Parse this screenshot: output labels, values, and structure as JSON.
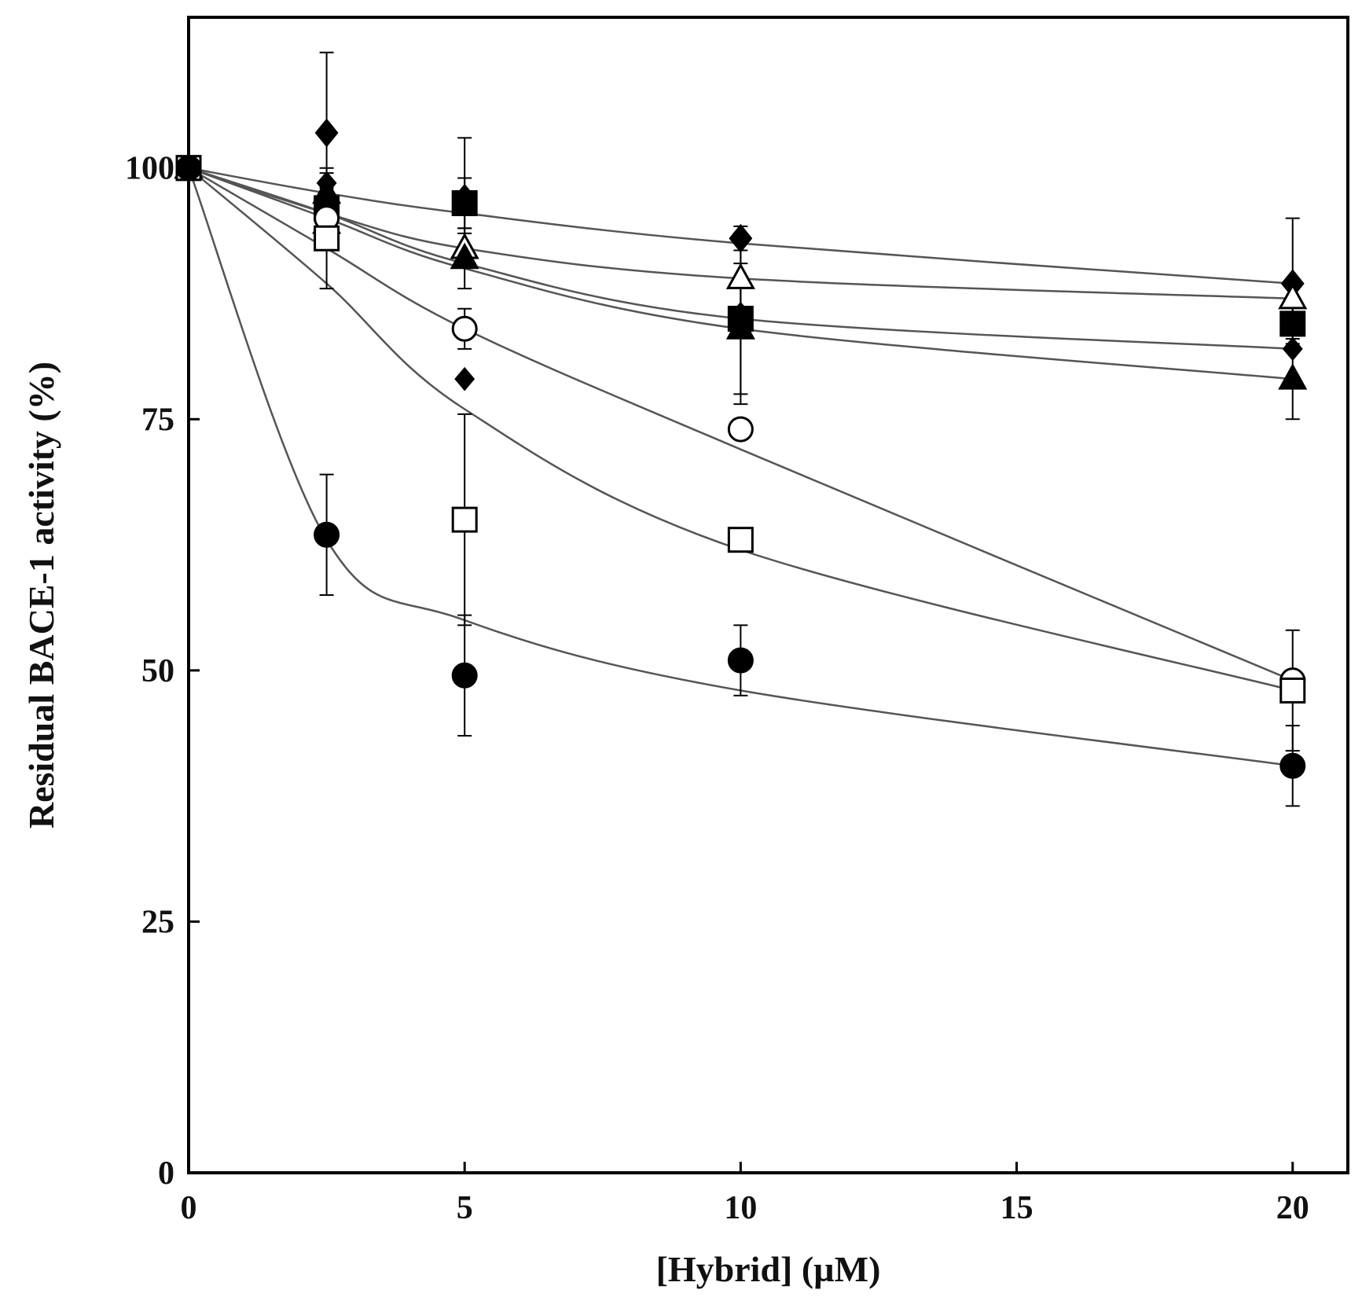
{
  "chart_data": {
    "type": "scatter",
    "title": "",
    "xlabel": "[Hybrid] (µM)",
    "ylabel": "Residual BACE-1 activity (%)",
    "xlim": [
      0,
      21
    ],
    "ylim": [
      0,
      115
    ],
    "xticks": [
      0,
      5,
      10,
      15,
      20
    ],
    "yticks": [
      0,
      25,
      50,
      75,
      100
    ],
    "xtick_labels": [
      "0",
      "5",
      "10",
      "15",
      "20"
    ],
    "ytick_labels": [
      "0",
      "25",
      "50",
      "75",
      "100"
    ],
    "grid": false,
    "legend": "none",
    "colors": {
      "ink": "#000000",
      "curve": "#555555",
      "background": "#ffffff"
    },
    "series": [
      {
        "name": "filled-diamond",
        "marker": "diamond",
        "filled": true,
        "x": [
          0,
          2.5,
          5,
          10,
          20
        ],
        "y": [
          100,
          103.5,
          97,
          93,
          88.5
        ],
        "err": [
          0,
          8,
          6,
          1.2,
          6.5
        ],
        "fit": [
          100,
          97.5,
          95.5,
          92.5,
          88.5
        ]
      },
      {
        "name": "open-triangle",
        "marker": "triangle",
        "filled": false,
        "x": [
          0,
          2.5,
          5,
          10,
          20
        ],
        "y": [
          100,
          94.5,
          92,
          89,
          87
        ],
        "err": [
          0,
          1.5,
          1.5,
          3.5,
          1.5
        ],
        "fit": [
          100,
          95.5,
          92,
          89,
          87
        ]
      },
      {
        "name": "filled-square",
        "marker": "square",
        "filled": true,
        "x": [
          0,
          2.5,
          5,
          10,
          20
        ],
        "y": [
          100,
          96,
          96.5,
          85,
          84.5
        ],
        "err": [
          0,
          1.5,
          2.5,
          8.5,
          2
        ],
        "fit": [
          100,
          95.5,
          90.5,
          85,
          82
        ]
      },
      {
        "name": "filled-triangle",
        "marker": "triangle",
        "filled": true,
        "x": [
          0,
          2.5,
          5,
          10,
          20
        ],
        "y": [
          100,
          97.5,
          91,
          84,
          79
        ],
        "err": [
          0,
          2.5,
          3,
          6.5,
          4
        ],
        "fit": [
          100,
          95,
          90,
          84,
          79
        ]
      },
      {
        "name": "small-filled-diamond",
        "marker": "diamond-small",
        "filled": true,
        "x": [
          0,
          2.5,
          5,
          10,
          20
        ],
        "y": [
          100,
          98.5,
          79,
          85.5,
          82
        ],
        "err": [
          0,
          1,
          0,
          0,
          0
        ],
        "fit": null
      },
      {
        "name": "open-circle",
        "marker": "circle",
        "filled": false,
        "x": [
          0,
          2.5,
          5,
          10,
          20
        ],
        "y": [
          100,
          95,
          84,
          74,
          49
        ],
        "err": [
          0,
          0,
          2,
          0,
          0
        ],
        "fit": [
          100,
          92,
          84,
          72,
          49
        ]
      },
      {
        "name": "open-square",
        "marker": "square",
        "filled": false,
        "x": [
          0,
          2.5,
          5,
          10,
          20
        ],
        "y": [
          100,
          93,
          65,
          63,
          48
        ],
        "err": [
          0,
          5,
          10.5,
          0,
          6
        ],
        "fit": [
          100,
          88.5,
          76,
          62,
          48
        ]
      },
      {
        "name": "filled-circle",
        "marker": "circle",
        "filled": true,
        "x": [
          0,
          2.5,
          5,
          10,
          20
        ],
        "y": [
          100,
          63.5,
          49.5,
          51,
          40.5
        ],
        "err": [
          0,
          6,
          6,
          3.5,
          4
        ],
        "fit": [
          100,
          63,
          55,
          48,
          40.5
        ]
      }
    ]
  }
}
